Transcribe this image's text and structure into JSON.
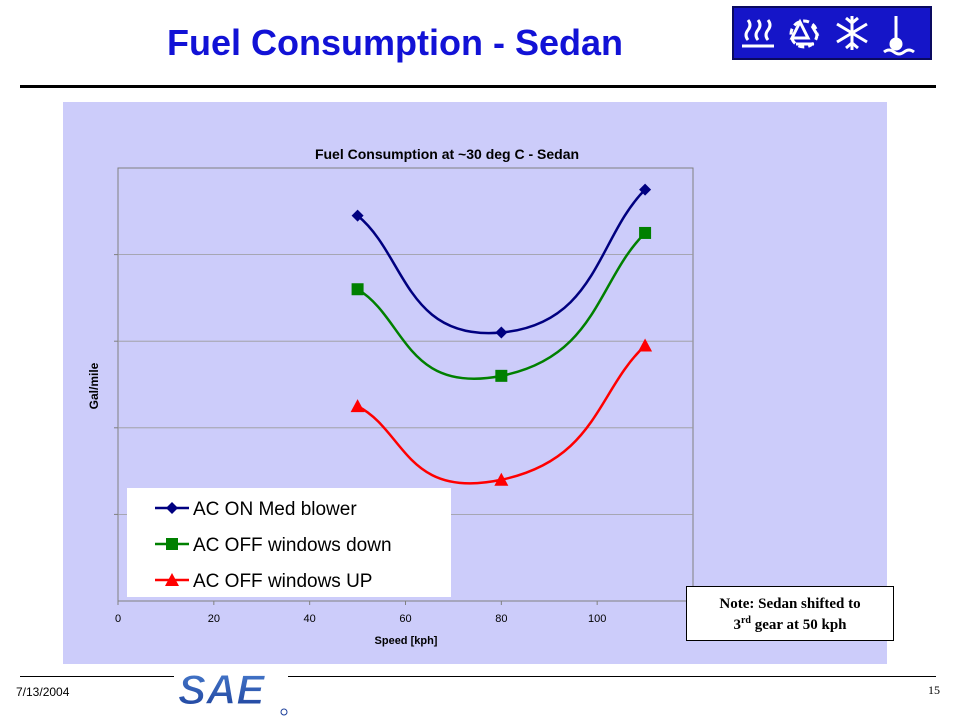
{
  "slide": {
    "title": "Fuel Consumption - Sedan",
    "date": "7/13/2004",
    "page_number": "15",
    "logo_text": "SAE",
    "header_icons": [
      "heat-waves-icon",
      "recycle-icon",
      "snowflake-icon",
      "thermometer-icon"
    ]
  },
  "note": {
    "line1": "Note: Sedan shifted to",
    "line2_num": "3",
    "line2_sup": "rd",
    "line2_rest": " gear at 50 kph"
  },
  "colors": {
    "panel_bg": "#ccccfa",
    "title": "#1212d6",
    "logo_bg": "#1515c8",
    "series_ac_on": "#000080",
    "series_ac_off_down": "#008000",
    "series_ac_off_up": "#ff0000"
  },
  "chart_data": {
    "type": "line",
    "title": "Fuel Consumption at ~30 deg C - Sedan",
    "xlabel": "Speed [kph]",
    "ylabel": "Gal/mile",
    "xlim": [
      0,
      120
    ],
    "x_ticks": [
      0,
      20,
      40,
      60,
      80,
      100
    ],
    "y_tick_labels_shown": false,
    "grid": "horizontal",
    "smoothed": true,
    "legend_position": "bottom-left",
    "ylim": [
      0,
      100
    ],
    "series": [
      {
        "name": "AC ON Med blower",
        "marker": "diamond",
        "color": "#000080",
        "x": [
          50,
          80,
          110
        ],
        "y": [
          89,
          62,
          95
        ]
      },
      {
        "name": "AC OFF windows down",
        "marker": "square",
        "color": "#008000",
        "x": [
          50,
          80,
          110
        ],
        "y": [
          72,
          52,
          85
        ]
      },
      {
        "name": "AC OFF windows UP",
        "marker": "triangle",
        "color": "#ff0000",
        "x": [
          50,
          80,
          110
        ],
        "y": [
          45,
          28,
          59
        ]
      }
    ]
  }
}
